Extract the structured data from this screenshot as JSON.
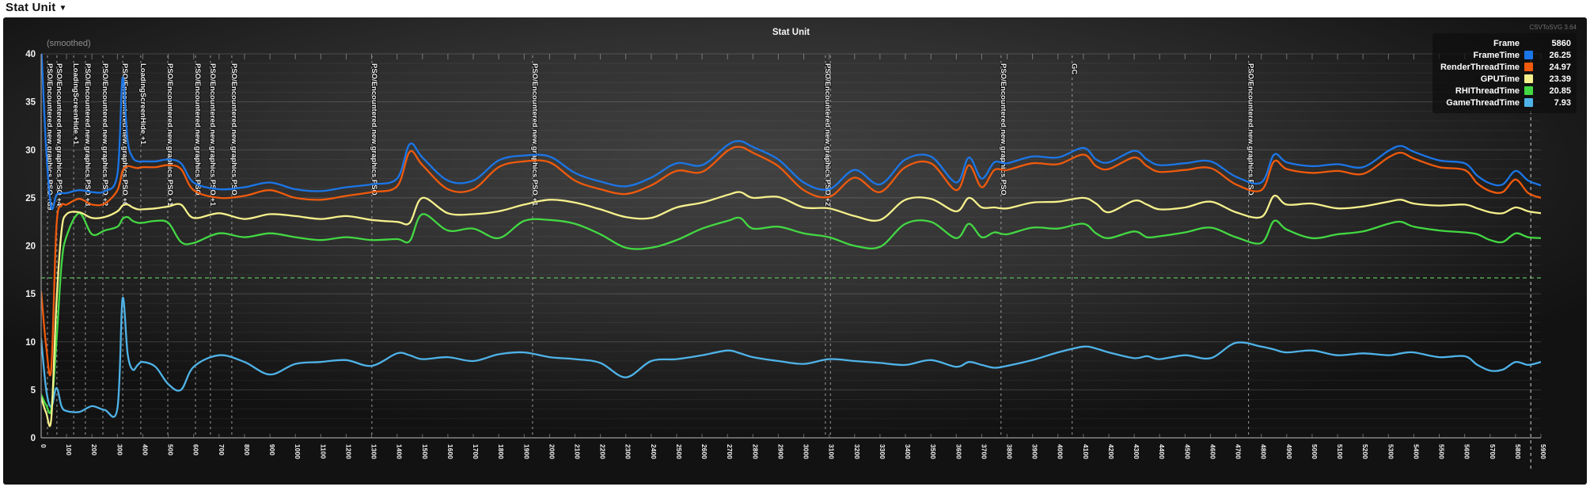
{
  "page": {
    "header_title": "Stat Unit",
    "header_caret": "▼"
  },
  "overlay": {
    "smoothed_label": "(smoothed)",
    "version_label": "CSVToSVG 3.64"
  },
  "chart_data": {
    "type": "line",
    "title": "Stat Unit",
    "xlabel": "",
    "ylabel": "",
    "xlim": [
      0,
      5900
    ],
    "ylim": [
      0,
      40
    ],
    "x_tick_step": 100,
    "y_tick_step": 5,
    "y_minor_step": 1,
    "grid": "horizontal-minor",
    "legend_position": "top-right",
    "frame_label": "Frame",
    "frame_value": "5860",
    "budget_line": {
      "value": 16.66,
      "color": "#54a654"
    },
    "frame_marker_x": 5860,
    "events": [
      {
        "x": 25,
        "label": "PSO/Encountered new graphics PSO +89"
      },
      {
        "x": 62,
        "label": "PSO/Encountered new graphics PSO +4"
      },
      {
        "x": 128,
        "label": "LoadingScreenHide +1"
      },
      {
        "x": 174,
        "label": "PSO/Encountered new graphics PSO +3"
      },
      {
        "x": 243,
        "label": "PSO/Encountered new graphics PSO +2"
      },
      {
        "x": 321,
        "label": "PSO/Encountered new graphics PSO +6"
      },
      {
        "x": 392,
        "label": "LoadingScreenHide +1"
      },
      {
        "x": 498,
        "label": "PSO/Encountered new graphics PSO +1"
      },
      {
        "x": 607,
        "label": "PSO/Encountered new graphics PSO"
      },
      {
        "x": 666,
        "label": "PSO/Encountered new graphics PSO +1"
      },
      {
        "x": 750,
        "label": "PSO/Encountered new graphics PSO"
      },
      {
        "x": 1301,
        "label": "PSO/Encountered new graphics PSO"
      },
      {
        "x": 1933,
        "label": "PSO/Encountered new graphics PSO +1"
      },
      {
        "x": 3085,
        "label": "PSO/Encountered new graphics PSO +2"
      },
      {
        "x": 3105,
        "label": ""
      },
      {
        "x": 3776,
        "label": "PSO/Encountered new graphics PSO"
      },
      {
        "x": 4056,
        "label": "GC"
      },
      {
        "x": 4750,
        "label": "PSO/Encountered new graphics PSO"
      }
    ],
    "x": [
      0,
      20,
      40,
      60,
      80,
      100,
      150,
      200,
      250,
      300,
      320,
      340,
      360,
      380,
      400,
      450,
      500,
      550,
      600,
      700,
      800,
      900,
      1000,
      1100,
      1200,
      1300,
      1400,
      1450,
      1500,
      1600,
      1700,
      1800,
      1900,
      2000,
      2100,
      2200,
      2300,
      2400,
      2500,
      2600,
      2700,
      2750,
      2800,
      2900,
      3000,
      3100,
      3200,
      3300,
      3400,
      3500,
      3600,
      3650,
      3700,
      3750,
      3800,
      3900,
      4000,
      4100,
      4150,
      4200,
      4300,
      4350,
      4400,
      4500,
      4600,
      4700,
      4800,
      4850,
      4900,
      5000,
      5100,
      5200,
      5300,
      5350,
      5400,
      5500,
      5600,
      5650,
      5700,
      5750,
      5800,
      5850,
      5900
    ],
    "series": [
      {
        "name": "FrameTime",
        "color": "#1b76e8",
        "current": "26.25",
        "values": [
          41,
          30,
          24,
          25.3,
          25.5,
          25.5,
          25.8,
          25.6,
          25.7,
          27.5,
          37.5,
          31,
          29.2,
          28.8,
          28.8,
          28.8,
          29,
          28.6,
          26.6,
          25.9,
          26.1,
          26.6,
          25.9,
          25.7,
          26.1,
          26.4,
          27,
          30.6,
          29.2,
          26.8,
          26.8,
          28.9,
          29.4,
          29.3,
          27.6,
          26.7,
          26.2,
          27.1,
          28.6,
          28.4,
          30.5,
          30.9,
          30.3,
          29,
          26.6,
          25.9,
          27.9,
          26.4,
          29,
          29.3,
          26.6,
          29.2,
          27,
          28.7,
          28.6,
          29.3,
          29.2,
          30.2,
          29,
          28.7,
          29.9,
          29,
          28.4,
          28.6,
          28.8,
          27.2,
          26.6,
          29.5,
          28.7,
          28.3,
          28.5,
          28.2,
          29.9,
          30.4,
          29.8,
          28.9,
          28.6,
          27.3,
          26.5,
          26.4,
          27.8,
          26.8,
          26.3
        ]
      },
      {
        "name": "RenderThreadTime",
        "color": "#f05a0c",
        "current": "24.97",
        "values": [
          15.2,
          9.5,
          7.2,
          22,
          24.2,
          24.3,
          24.9,
          24.3,
          24.4,
          25.8,
          27.8,
          28.3,
          28.2,
          28.1,
          28.2,
          28.2,
          28.4,
          28,
          25.8,
          25,
          25.2,
          25.8,
          25,
          24.8,
          25.2,
          25.6,
          26.2,
          29.8,
          28.4,
          25.9,
          25.9,
          28.2,
          28.8,
          28.7,
          26.8,
          25.9,
          25.4,
          26.3,
          27.8,
          27.7,
          29.9,
          30.3,
          29.7,
          28.3,
          25.8,
          25.1,
          27.1,
          25.6,
          28.2,
          28.6,
          25.8,
          28.4,
          26.1,
          27.9,
          27.9,
          28.6,
          28.5,
          29.5,
          28.3,
          28,
          29.2,
          28.3,
          27.7,
          27.9,
          28.1,
          26.4,
          25.8,
          28.8,
          28,
          27.6,
          27.8,
          27.5,
          29.2,
          29.7,
          29.1,
          28.2,
          27.9,
          26.5,
          25.7,
          25.6,
          26.9,
          25.5,
          25
        ]
      },
      {
        "name": "GPUTime",
        "color": "#f5f08c",
        "current": "23.39",
        "values": [
          4.2,
          2.6,
          2,
          14,
          21.5,
          23.3,
          23.5,
          22.9,
          23,
          23.6,
          24.2,
          24.3,
          24,
          23.8,
          23.8,
          23.9,
          24.1,
          24.3,
          22.9,
          23.4,
          22.8,
          23.3,
          23.1,
          22.8,
          23.1,
          22.7,
          22.5,
          22.4,
          25,
          23.4,
          23.3,
          23.6,
          24.3,
          24.8,
          24.5,
          23.8,
          23,
          22.9,
          24,
          24.5,
          25.3,
          25.6,
          25,
          25.1,
          24,
          23.9,
          23.1,
          22.7,
          24.8,
          24.9,
          23.6,
          25,
          24,
          24,
          23.9,
          24.5,
          24.6,
          25,
          24.4,
          23.5,
          24.7,
          24.3,
          23.8,
          24,
          24.6,
          23.5,
          23,
          25.2,
          24.3,
          24.4,
          23.9,
          24.1,
          24.6,
          24.8,
          24.4,
          24.2,
          24.3,
          23.9,
          23.5,
          23.4,
          24,
          23.6,
          23.4
        ]
      },
      {
        "name": "RHIThreadTime",
        "color": "#43d843",
        "current": "20.85",
        "values": [
          4.5,
          3.4,
          3,
          10,
          18,
          21,
          23.4,
          21.2,
          21.6,
          22,
          22.8,
          23,
          22.6,
          22.4,
          22.4,
          22.6,
          22.4,
          20.4,
          20.3,
          21.3,
          20.9,
          21.3,
          20.9,
          20.6,
          20.9,
          20.6,
          20.7,
          20.5,
          23.3,
          21.6,
          21.8,
          20.8,
          22.6,
          22.7,
          22.3,
          21.2,
          19.8,
          19.8,
          20.6,
          21.8,
          22.6,
          22.9,
          21.8,
          22,
          21.3,
          20.9,
          20,
          19.9,
          22.3,
          22.5,
          20.8,
          22.3,
          20.9,
          21.4,
          21.2,
          21.9,
          21.8,
          22.3,
          21.3,
          20.8,
          21.5,
          20.9,
          21,
          21.4,
          21.9,
          20.9,
          20.3,
          22.6,
          21.7,
          20.8,
          21.2,
          21.5,
          22.3,
          22.5,
          22,
          21.6,
          21.4,
          21.2,
          20.6,
          20.4,
          21.3,
          20.9,
          20.8
        ]
      },
      {
        "name": "GameThreadTime",
        "color": "#4fb3e8",
        "current": "7.93",
        "values": [
          10.3,
          5,
          3.2,
          5.2,
          3.3,
          2.8,
          2.7,
          3.3,
          2.9,
          3.1,
          14.5,
          8.8,
          7.1,
          7.6,
          7.9,
          7.4,
          5.6,
          5,
          7.4,
          8.6,
          7.9,
          6.6,
          7.7,
          7.9,
          8.1,
          7.5,
          8.8,
          8.6,
          8.2,
          8.4,
          8,
          8.7,
          8.9,
          8.4,
          8.2,
          7.8,
          6.3,
          8,
          8.2,
          8.6,
          9.1,
          8.8,
          8.4,
          8,
          7.7,
          8.2,
          8,
          7.8,
          7.6,
          8.1,
          7.4,
          7.9,
          7.6,
          7.3,
          7.5,
          8.1,
          8.9,
          9.5,
          9.3,
          8.9,
          8.3,
          8.5,
          8.2,
          8.6,
          8.3,
          9.9,
          9.5,
          9.2,
          8.9,
          9.1,
          8.6,
          8.8,
          8.6,
          8.8,
          8.9,
          8.4,
          8.5,
          7.6,
          7,
          7.1,
          7.9,
          7.6,
          7.9
        ]
      }
    ]
  }
}
